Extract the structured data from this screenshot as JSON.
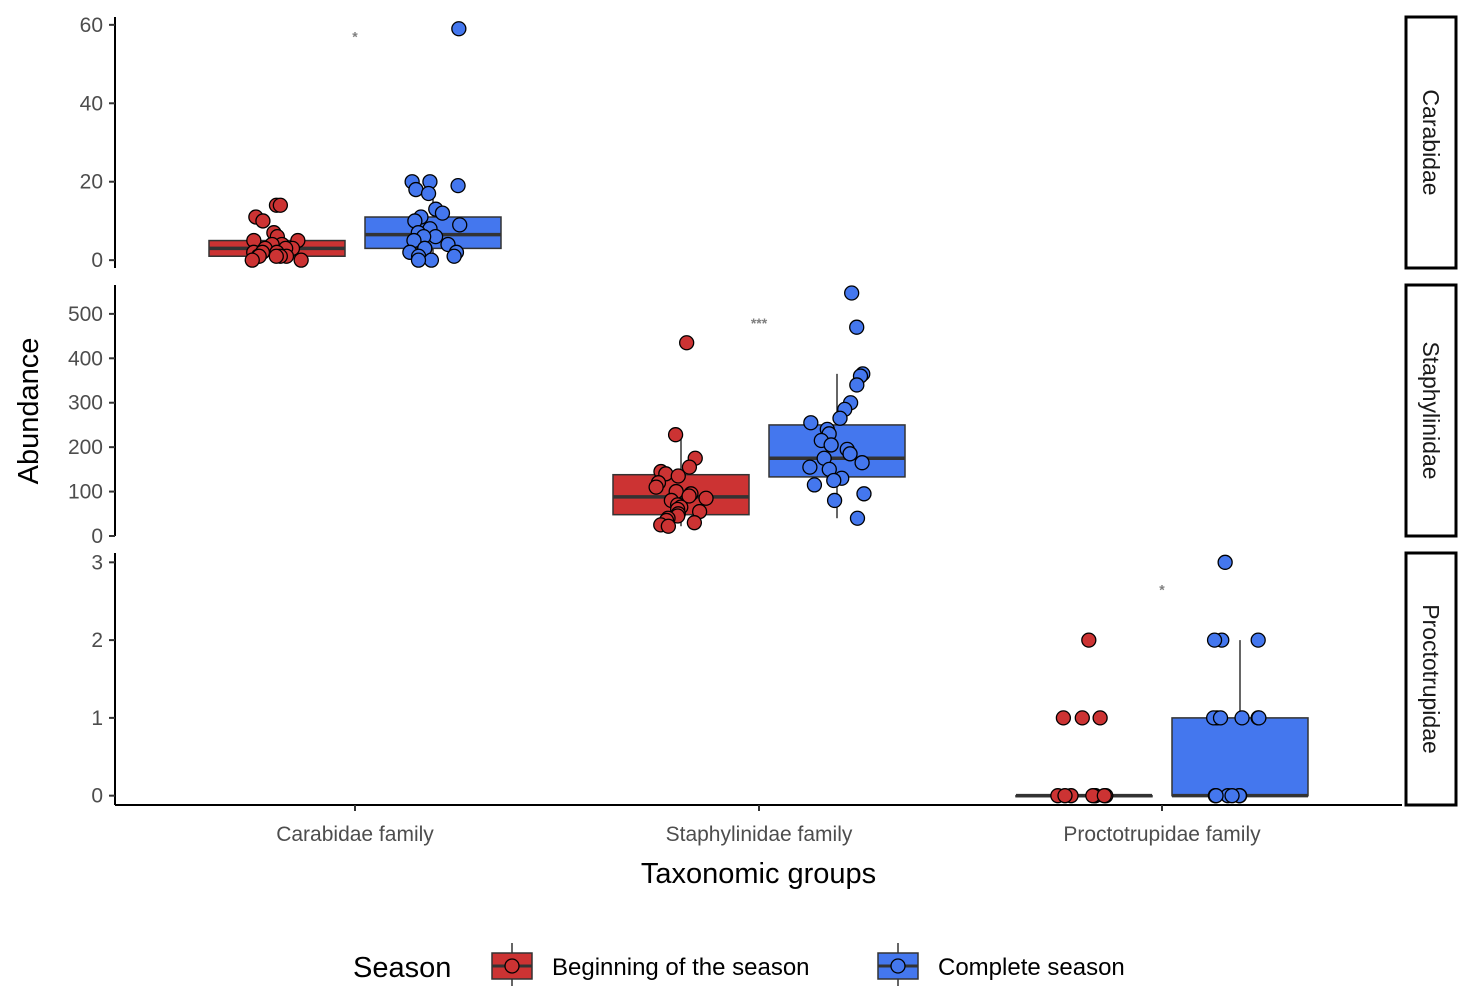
{
  "chart_data": {
    "type": "boxplot",
    "xlabel": "Taxonomic groups",
    "ylabel": "Abundance",
    "categories": [
      "Carabidae family",
      "Staphylinidae family",
      "Proctotrupidae family"
    ],
    "legend": {
      "title": "Season",
      "position": "bottom",
      "items": [
        {
          "label": "Beginning of the season",
          "color": "#CC3333"
        },
        {
          "label": "Complete season",
          "color": "#4477EE"
        }
      ]
    },
    "panels": [
      {
        "strip": "Carabidae",
        "category": "Carabidae family",
        "ylim": [
          -2,
          62
        ],
        "yticks": [
          "0",
          "20",
          "40",
          "60"
        ],
        "significance": "*",
        "significance_y": 57,
        "series": [
          {
            "name": "Beginning of the season",
            "box": {
              "q1": 1,
              "median": 3,
              "q3": 5
            },
            "whisker": [
              0,
              7
            ],
            "points": [
              14,
              14,
              11,
              10,
              7,
              6,
              5,
              5,
              4,
              4,
              3,
              3,
              3,
              2,
              2,
              2,
              1,
              1,
              1,
              1,
              1,
              0,
              0
            ]
          },
          {
            "name": "Complete season",
            "box": {
              "q1": 3,
              "median": 6.5,
              "q3": 11
            },
            "whisker": [
              0,
              20
            ],
            "points": [
              59,
              20,
              20,
              19,
              18,
              17,
              13,
              12,
              11,
              10,
              9,
              8,
              7,
              6,
              6,
              5,
              4,
              3,
              3,
              2,
              2,
              1,
              1,
              0,
              0
            ]
          }
        ]
      },
      {
        "strip": "Staphylinidae",
        "category": "Staphylinidae family",
        "ylim": [
          0,
          565
        ],
        "yticks": [
          "0",
          "100",
          "200",
          "300",
          "400",
          "500"
        ],
        "significance": "***",
        "significance_y": 480,
        "series": [
          {
            "name": "Beginning of the season",
            "box": {
              "q1": 48,
              "median": 88,
              "q3": 138
            },
            "whisker": [
              22,
              228
            ],
            "points": [
              435,
              228,
              175,
              155,
              145,
              140,
              135,
              120,
              110,
              100,
              95,
              90,
              85,
              80,
              70,
              65,
              60,
              55,
              50,
              45,
              40,
              35,
              30,
              25,
              22
            ]
          },
          {
            "name": "Complete season",
            "box": {
              "q1": 133,
              "median": 175,
              "q3": 250
            },
            "whisker": [
              40,
              365
            ],
            "points": [
              547,
              470,
              365,
              360,
              340,
              300,
              285,
              265,
              255,
              240,
              230,
              215,
              205,
              195,
              185,
              175,
              165,
              155,
              150,
              130,
              125,
              115,
              95,
              80,
              40
            ]
          }
        ]
      },
      {
        "strip": "Proctotrupidae",
        "category": "Proctotrupidae family",
        "ylim": [
          -0.12,
          3.12
        ],
        "yticks": [
          "0",
          "1",
          "2",
          "3"
        ],
        "significance": "*",
        "significance_y": 2.65,
        "series": [
          {
            "name": "Beginning of the season",
            "box": {
              "q1": 0,
              "median": 0,
              "q3": 0
            },
            "whisker": [
              0,
              0
            ],
            "points": [
              2,
              1,
              1,
              1,
              0,
              0,
              0,
              0,
              0,
              0,
              0,
              0
            ]
          },
          {
            "name": "Complete season",
            "box": {
              "q1": 0,
              "median": 0,
              "q3": 1
            },
            "whisker": [
              0,
              2
            ],
            "points": [
              3,
              2,
              2,
              2,
              1,
              1,
              1,
              1,
              1,
              1,
              0,
              0,
              0,
              0,
              0,
              0
            ]
          }
        ]
      }
    ]
  }
}
